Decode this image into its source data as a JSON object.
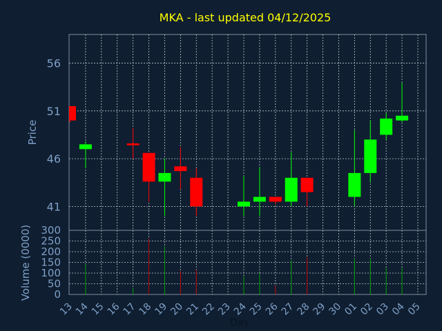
{
  "title": "MKA - last updated 04/12/2025",
  "colors": {
    "background": "#0f1e30",
    "title": "#ffff00",
    "axis_text": "#7fa0c8",
    "frame": "#7f8fa0",
    "up": "#00ff00",
    "down": "#ff0000",
    "volume_line": "#00a000",
    "volume_line_down": "#c00000"
  },
  "chart_data": [
    {
      "type": "candlestick",
      "title": "MKA - last updated 04/12/2025",
      "ylabel": "Price",
      "ylim": [
        38.5,
        59
      ],
      "yticks": [
        41,
        46,
        51,
        56
      ],
      "grid": true,
      "x": [
        "13",
        "14",
        "15",
        "16",
        "17",
        "18",
        "19",
        "20",
        "21",
        "22",
        "23",
        "24",
        "25",
        "26",
        "27",
        "28",
        "29",
        "30",
        "01",
        "02",
        "03",
        "04",
        "05"
      ],
      "candles": [
        {
          "x": "13",
          "open": 51.5,
          "high": 51.5,
          "low": 49.8,
          "close": 50.0
        },
        {
          "x": "14",
          "open": 47.0,
          "high": 47.8,
          "low": 45.0,
          "close": 47.5
        },
        {
          "x": "17",
          "open": 47.6,
          "high": 49.2,
          "low": 46.0,
          "close": 47.4
        },
        {
          "x": "18",
          "open": 46.6,
          "high": 46.6,
          "low": 41.5,
          "close": 43.6
        },
        {
          "x": "19",
          "open": 43.6,
          "high": 46.0,
          "low": 40.0,
          "close": 44.5
        },
        {
          "x": "20",
          "open": 45.2,
          "high": 47.2,
          "low": 42.8,
          "close": 44.7
        },
        {
          "x": "21",
          "open": 44.0,
          "high": 45.0,
          "low": 40.0,
          "close": 41.0
        },
        {
          "x": "24",
          "open": 41.0,
          "high": 44.2,
          "low": 40.0,
          "close": 41.5
        },
        {
          "x": "25",
          "open": 41.5,
          "high": 45.1,
          "low": 40.0,
          "close": 42.0
        },
        {
          "x": "26",
          "open": 42.0,
          "high": 42.0,
          "low": 41.2,
          "close": 41.5
        },
        {
          "x": "27",
          "open": 41.5,
          "high": 46.7,
          "low": 41.0,
          "close": 44.0
        },
        {
          "x": "28",
          "open": 44.0,
          "high": 44.0,
          "low": 41.0,
          "close": 42.5
        },
        {
          "x": "01",
          "open": 42.0,
          "high": 49.0,
          "low": 41.0,
          "close": 44.5
        },
        {
          "x": "02",
          "open": 44.5,
          "high": 50.0,
          "low": 43.5,
          "close": 48.0
        },
        {
          "x": "03",
          "open": 48.5,
          "high": 50.8,
          "low": 48.0,
          "close": 50.2
        },
        {
          "x": "04",
          "open": 50.0,
          "high": 54.0,
          "low": 49.8,
          "close": 50.5
        }
      ]
    },
    {
      "type": "bar",
      "ylabel": "Volume (0000)",
      "xlabel": "Day",
      "ylim": [
        0,
        300
      ],
      "yticks": [
        0,
        50,
        100,
        150,
        200,
        250,
        300
      ],
      "grid": true,
      "x": [
        "13",
        "14",
        "15",
        "16",
        "17",
        "18",
        "19",
        "20",
        "21",
        "22",
        "23",
        "24",
        "25",
        "26",
        "27",
        "28",
        "29",
        "30",
        "01",
        "02",
        "03",
        "04",
        "05"
      ],
      "bars": [
        {
          "x": "14",
          "value": 140,
          "dir": "up"
        },
        {
          "x": "17",
          "value": 30,
          "dir": "up"
        },
        {
          "x": "18",
          "value": 260,
          "dir": "down"
        },
        {
          "x": "19",
          "value": 225,
          "dir": "up"
        },
        {
          "x": "20",
          "value": 110,
          "dir": "down"
        },
        {
          "x": "21",
          "value": 115,
          "dir": "down"
        },
        {
          "x": "24",
          "value": 85,
          "dir": "up"
        },
        {
          "x": "25",
          "value": 100,
          "dir": "up"
        },
        {
          "x": "26",
          "value": 40,
          "dir": "down"
        },
        {
          "x": "27",
          "value": 160,
          "dir": "up"
        },
        {
          "x": "28",
          "value": 175,
          "dir": "down"
        },
        {
          "x": "01",
          "value": 170,
          "dir": "up"
        },
        {
          "x": "02",
          "value": 170,
          "dir": "up"
        },
        {
          "x": "03",
          "value": 125,
          "dir": "up"
        },
        {
          "x": "04",
          "value": 125,
          "dir": "up"
        }
      ]
    }
  ]
}
